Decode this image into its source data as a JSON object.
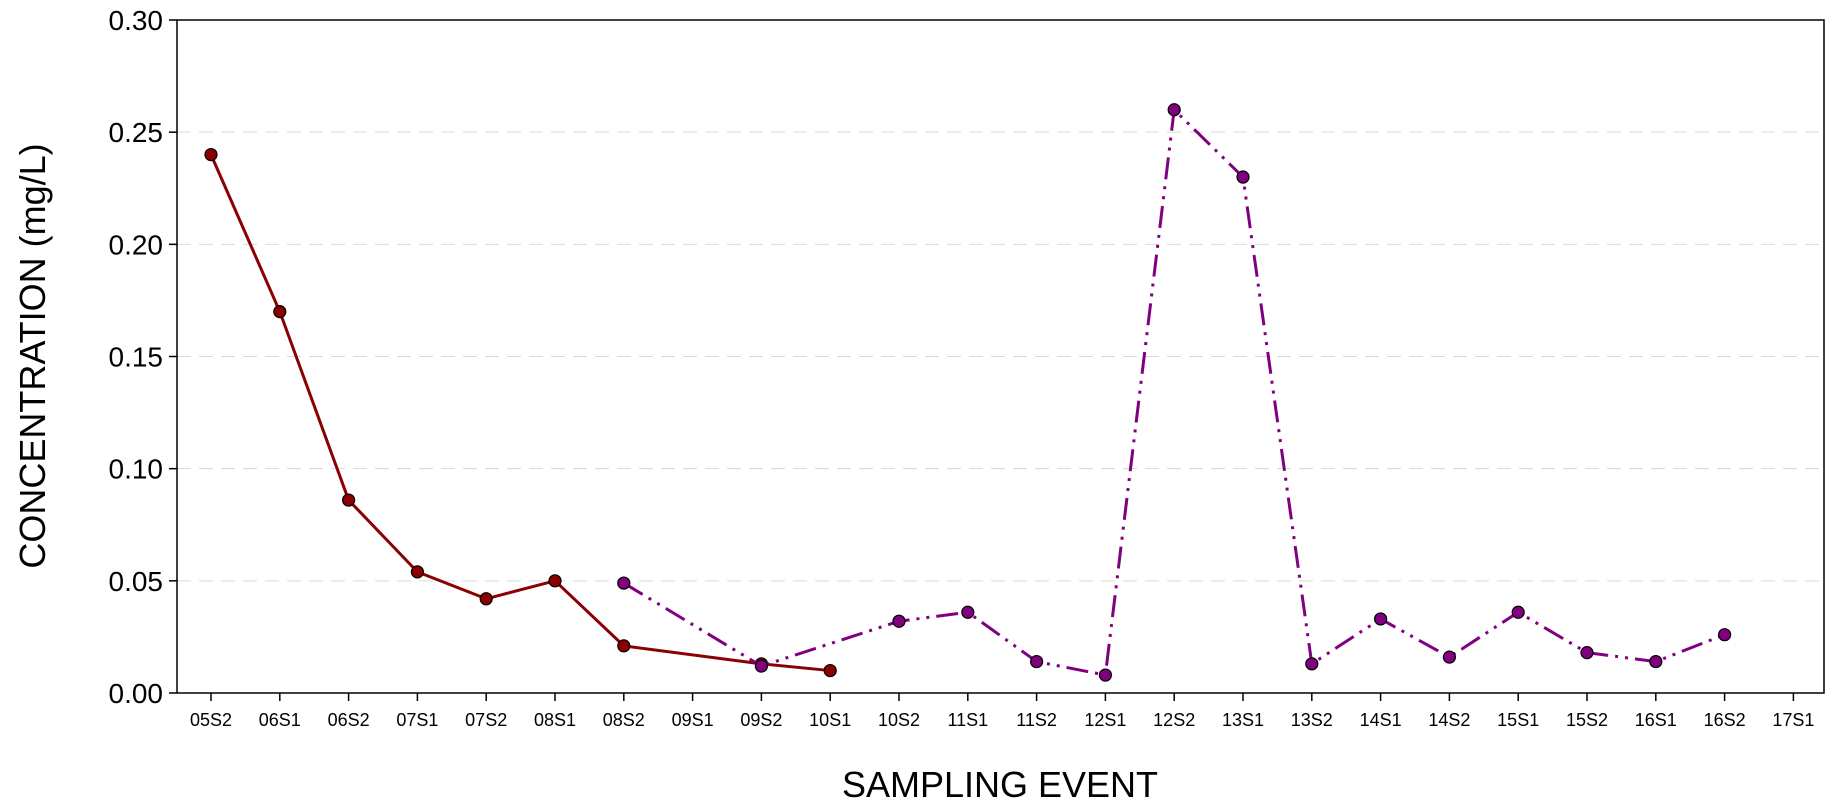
{
  "chart_data": {
    "type": "line",
    "xlabel": "SAMPLING EVENT",
    "ylabel": "CONCENTRATION (mg/L)",
    "ylim": [
      0,
      0.3
    ],
    "yticks": [
      "0.00",
      "0.05",
      "0.10",
      "0.15",
      "0.20",
      "0.25",
      "0.30"
    ],
    "grid": "horizontal dashed",
    "categories": [
      "05S2",
      "06S1",
      "06S2",
      "07S1",
      "07S2",
      "08S1",
      "08S2",
      "09S1",
      "09S2",
      "10S1",
      "10S2",
      "11S1",
      "11S2",
      "12S1",
      "12S2",
      "13S1",
      "13S2",
      "14S1",
      "14S2",
      "15S1",
      "15S2",
      "16S1",
      "16S2",
      "17S1"
    ],
    "series": [
      {
        "color": "#8b0000",
        "line_style": "solid",
        "points": [
          {
            "x": "05S2",
            "y": 0.24
          },
          {
            "x": "06S1",
            "y": 0.17
          },
          {
            "x": "06S2",
            "y": 0.086
          },
          {
            "x": "07S1",
            "y": 0.054
          },
          {
            "x": "07S2",
            "y": 0.042
          },
          {
            "x": "08S1",
            "y": 0.05
          },
          {
            "x": "08S2",
            "y": 0.021
          },
          {
            "x": "09S2",
            "y": 0.013
          },
          {
            "x": "10S1",
            "y": 0.01
          }
        ]
      },
      {
        "color": "#800080",
        "line_style": "dash-dot-dot",
        "points": [
          {
            "x": "08S2",
            "y": 0.049
          },
          {
            "x": "09S2",
            "y": 0.012
          },
          {
            "x": "10S2",
            "y": 0.032
          },
          {
            "x": "11S1",
            "y": 0.036
          },
          {
            "x": "11S2",
            "y": 0.014
          },
          {
            "x": "12S1",
            "y": 0.008
          },
          {
            "x": "12S2",
            "y": 0.26
          },
          {
            "x": "13S1",
            "y": 0.23
          },
          {
            "x": "13S2",
            "y": 0.013
          },
          {
            "x": "14S1",
            "y": 0.033
          },
          {
            "x": "14S2",
            "y": 0.016
          },
          {
            "x": "15S1",
            "y": 0.036
          },
          {
            "x": "15S2",
            "y": 0.018
          },
          {
            "x": "16S1",
            "y": 0.014
          },
          {
            "x": "16S2",
            "y": 0.026
          }
        ]
      }
    ]
  }
}
